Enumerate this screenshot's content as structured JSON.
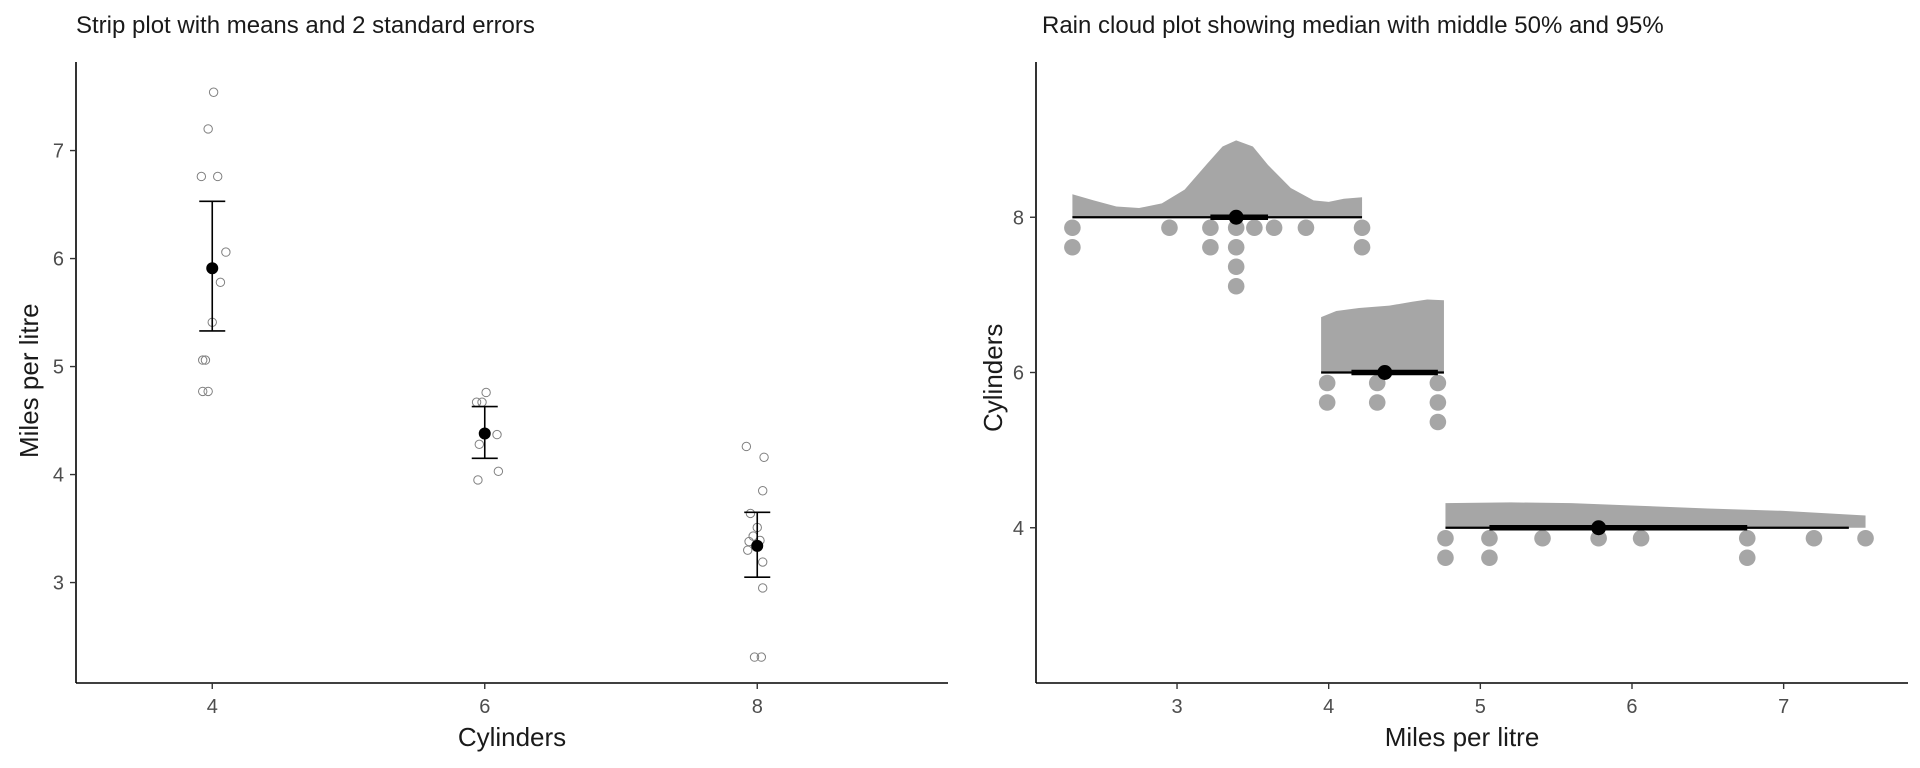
{
  "chart_data": [
    {
      "type": "scatter",
      "subtype": "strip plot with mean and error bars",
      "title": "Strip plot with means and 2 standard errors",
      "xlabel": "Cylinders",
      "ylabel": "Miles per litre",
      "x_ticks": [
        "4",
        "6",
        "8"
      ],
      "y_ticks": [
        "3",
        "4",
        "5",
        "6",
        "7"
      ],
      "xlim": [
        3.0,
        9.4
      ],
      "ylim": [
        2.07,
        7.82
      ],
      "points": {
        "4": [
          [
            4.01,
            7.54
          ],
          [
            3.97,
            7.2
          ],
          [
            3.92,
            6.76
          ],
          [
            4.04,
            6.76
          ],
          [
            4.1,
            6.06
          ],
          [
            4.06,
            5.78
          ],
          [
            4.0,
            5.41
          ],
          [
            3.93,
            5.06
          ],
          [
            3.95,
            5.06
          ],
          [
            3.93,
            4.77
          ],
          [
            3.97,
            4.77
          ]
        ],
        "6": [
          [
            3.94,
            4.67
          ],
          [
            3.98,
            4.67
          ],
          [
            4.01,
            4.76
          ],
          [
            3.96,
            4.28
          ],
          [
            4.09,
            4.37
          ],
          [
            4.1,
            4.03
          ],
          [
            3.95,
            3.95
          ]
        ],
        "8": [
          [
            3.92,
            4.26
          ],
          [
            4.05,
            4.16
          ],
          [
            4.04,
            3.85
          ],
          [
            3.95,
            3.64
          ],
          [
            4.0,
            3.51
          ],
          [
            3.97,
            3.43
          ],
          [
            4.02,
            3.39
          ],
          [
            3.94,
            3.38
          ],
          [
            3.93,
            3.3
          ],
          [
            4.04,
            3.19
          ],
          [
            4.04,
            2.95
          ],
          [
            3.98,
            2.31
          ],
          [
            4.03,
            2.31
          ],
          [
            3.99,
            3.34
          ]
        ]
      },
      "summary": [
        {
          "group": "4",
          "mean": 5.91,
          "lower": 5.33,
          "upper": 6.53
        },
        {
          "group": "6",
          "mean": 4.38,
          "lower": 4.15,
          "upper": 4.63
        },
        {
          "group": "8",
          "mean": 3.34,
          "lower": 3.05,
          "upper": 3.65
        }
      ],
      "colors": {
        "points": "#808080",
        "summary": "#000000",
        "axis": "#000000"
      }
    },
    {
      "type": "area",
      "subtype": "rain cloud plot",
      "title": "Rain cloud plot showing median with middle 50% and 95%",
      "xlabel": "Miles per litre",
      "ylabel": "Cylinders",
      "x_ticks": [
        "3",
        "4",
        "5",
        "6",
        "7"
      ],
      "y_ticks": [
        "4",
        "6",
        "8"
      ],
      "xlim": [
        2.07,
        7.82
      ],
      "ylim": [
        2.0,
        10.0
      ],
      "groups": [
        {
          "name": "8",
          "median": 3.39,
          "q1": 3.22,
          "q3": 3.6,
          "lo95": 2.31,
          "hi95": 4.22,
          "density": [
            [
              2.31,
              0.3
            ],
            [
              2.45,
              0.22
            ],
            [
              2.6,
              0.14
            ],
            [
              2.75,
              0.12
            ],
            [
              2.9,
              0.18
            ],
            [
              3.05,
              0.36
            ],
            [
              3.2,
              0.7
            ],
            [
              3.3,
              0.92
            ],
            [
              3.39,
              1.0
            ],
            [
              3.5,
              0.92
            ],
            [
              3.6,
              0.68
            ],
            [
              3.75,
              0.38
            ],
            [
              3.9,
              0.22
            ],
            [
              4.0,
              0.2
            ],
            [
              4.1,
              0.24
            ],
            [
              4.22,
              0.26
            ]
          ],
          "dots": [
            [
              2.31,
              1
            ],
            [
              2.31,
              2
            ],
            [
              2.95,
              1
            ],
            [
              3.22,
              1
            ],
            [
              3.22,
              2
            ],
            [
              3.39,
              1
            ],
            [
              3.39,
              2
            ],
            [
              3.39,
              3
            ],
            [
              3.39,
              4
            ],
            [
              3.51,
              1
            ],
            [
              3.64,
              1
            ],
            [
              3.85,
              1
            ],
            [
              4.22,
              1
            ],
            [
              4.22,
              2
            ]
          ]
        },
        {
          "name": "6",
          "median": 4.37,
          "q1": 4.15,
          "q3": 4.72,
          "lo95": 3.95,
          "hi95": 4.76,
          "density": [
            [
              3.95,
              0.72
            ],
            [
              4.05,
              0.8
            ],
            [
              4.2,
              0.84
            ],
            [
              4.4,
              0.87
            ],
            [
              4.55,
              0.92
            ],
            [
              4.65,
              0.95
            ],
            [
              4.76,
              0.94
            ]
          ],
          "dots": [
            [
              3.99,
              1
            ],
            [
              3.99,
              2
            ],
            [
              4.32,
              1
            ],
            [
              4.32,
              2
            ],
            [
              4.72,
              1
            ],
            [
              4.72,
              2
            ],
            [
              4.72,
              3
            ]
          ]
        },
        {
          "name": "4",
          "median": 5.78,
          "q1": 5.06,
          "q3": 6.76,
          "lo95": 4.77,
          "hi95": 7.43,
          "density": [
            [
              4.77,
              0.32
            ],
            [
              5.2,
              0.33
            ],
            [
              5.6,
              0.32
            ],
            [
              6.0,
              0.29
            ],
            [
              6.5,
              0.25
            ],
            [
              7.0,
              0.22
            ],
            [
              7.54,
              0.16
            ]
          ],
          "dots": [
            [
              4.77,
              1
            ],
            [
              4.77,
              2
            ],
            [
              5.06,
              1
            ],
            [
              5.06,
              2
            ],
            [
              5.41,
              1
            ],
            [
              5.78,
              1
            ],
            [
              6.06,
              1
            ],
            [
              6.76,
              1
            ],
            [
              6.76,
              2
            ],
            [
              7.2,
              1
            ],
            [
              7.54,
              1
            ]
          ]
        }
      ],
      "colors": {
        "cloud": "#a6a6a6",
        "rain": "#a6a6a6",
        "interval": "#000000",
        "axis": "#000000"
      }
    }
  ]
}
